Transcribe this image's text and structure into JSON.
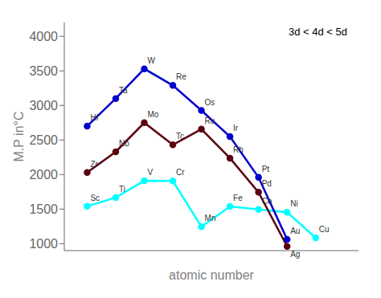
{
  "chart_data": {
    "type": "line",
    "xlabel": "atomic number",
    "ylabel": "M.P in°C",
    "annotation": "3d < 4d < 5d",
    "xlim": [
      0.2,
      10.5
    ],
    "ylim": [
      900,
      4200
    ],
    "yticks": [
      1000,
      1500,
      2000,
      2500,
      3000,
      3500,
      4000
    ],
    "tick_labels": "y",
    "grid": false,
    "series": [
      {
        "color": "cyan",
        "x": [
          1,
          2,
          3,
          4,
          5,
          6,
          7,
          8,
          9
        ],
        "values": [
          1541,
          1668,
          1910,
          1907,
          1246,
          1538,
          1495,
          1455,
          1085
        ],
        "labels": [
          "Sc",
          "Ti",
          "V",
          "Cr",
          "Mn",
          "Fe",
          "Co",
          "Ni",
          "Cu"
        ]
      },
      {
        "color": "#5a0010",
        "x": [
          1,
          2,
          3,
          4,
          5,
          6,
          7,
          8
        ],
        "values": [
          2030,
          2330,
          2750,
          2430,
          2657,
          2237,
          1744,
          961
        ],
        "labels": [
          "Zr",
          "Nb",
          "Mo",
          "Tc",
          "Ru",
          "Rh",
          "Pd",
          "Ag"
        ]
      },
      {
        "color": "#0000cc",
        "x": [
          1,
          2,
          3,
          4,
          5,
          6,
          7,
          8
        ],
        "values": [
          2700,
          3100,
          3530,
          3290,
          2927,
          2550,
          1960,
          1064
        ],
        "labels": [
          "Hf",
          "Ta",
          "W",
          "Re",
          "Os",
          "Ir",
          "Pt",
          "Au"
        ]
      }
    ]
  }
}
